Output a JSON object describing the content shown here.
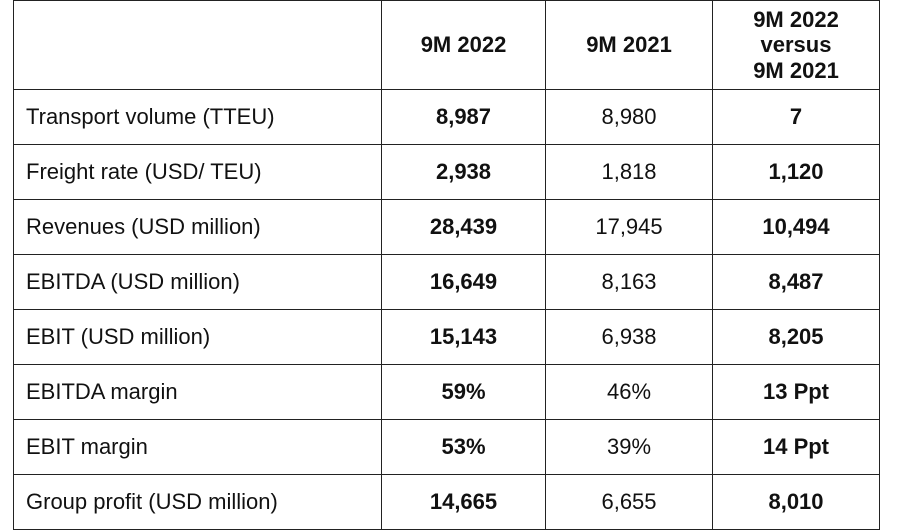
{
  "table": {
    "headers": [
      "",
      "9M 2022",
      "9M 2021",
      "9M 2022 versus 9M 2021"
    ],
    "header_last_lines": [
      "9M 2022",
      "versus",
      "9M 2021"
    ],
    "rows": [
      {
        "label": "Transport volume (TTEU)",
        "v2022": "8,987",
        "v2021": "8,980",
        "diff": "7"
      },
      {
        "label": "Freight rate (USD/ TEU)",
        "v2022": "2,938",
        "v2021": "1,818",
        "diff": "1,120"
      },
      {
        "label": "Revenues (USD million)",
        "v2022": "28,439",
        "v2021": "17,945",
        "diff": "10,494"
      },
      {
        "label": "EBITDA (USD million)",
        "v2022": "16,649",
        "v2021": "8,163",
        "diff": "8,487"
      },
      {
        "label": "EBIT (USD million)",
        "v2022": "15,143",
        "v2021": "6,938",
        "diff": "8,205"
      },
      {
        "label": "EBITDA margin",
        "v2022": "59%",
        "v2021": "46%",
        "diff": "13 Ppt"
      },
      {
        "label": "EBIT margin",
        "v2022": "53%",
        "v2021": "39%",
        "diff": "14 Ppt"
      },
      {
        "label": "Group profit (USD million)",
        "v2022": "14,665",
        "v2021": "6,655",
        "diff": "8,010"
      }
    ]
  }
}
